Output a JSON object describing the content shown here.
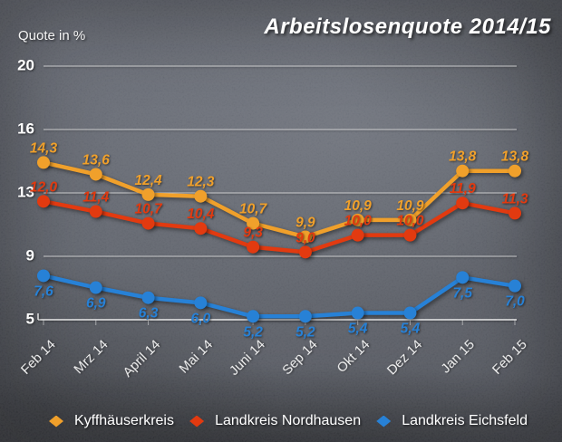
{
  "title": "Arbeitslosenquote 2014/15",
  "chart_data": {
    "type": "line",
    "title": "Arbeitslosenquote 2014/15",
    "ylabel": "Quote in %",
    "xlabel": "",
    "grid": true,
    "legend_position": "bottom",
    "ylim": [
      5,
      20
    ],
    "y_ticks": [
      20,
      16,
      13,
      9,
      5
    ],
    "categories": [
      "Feb 14",
      "Mrz 14",
      "April 14",
      "Mai 14",
      "Juni 14",
      "Sep 14",
      "Okt 14",
      "Dez 14",
      "Jan 15",
      "Feb 15"
    ],
    "decimal_separator": ",",
    "series": [
      {
        "name": "Kyffhäuserkreis",
        "color": "#F0A02B",
        "label_side": "above",
        "values": [
          14.3,
          13.6,
          12.4,
          12.3,
          10.7,
          9.9,
          10.9,
          10.9,
          13.8,
          13.8
        ]
      },
      {
        "name": "Landkreis Nordhausen",
        "color": "#E23A10",
        "label_side": "above",
        "values": [
          12.0,
          11.4,
          10.7,
          10.4,
          9.3,
          9.0,
          10.0,
          10.0,
          11.9,
          11.3
        ]
      },
      {
        "name": "Landkreis Eichsfeld",
        "color": "#2781D6",
        "label_side": "below",
        "values": [
          7.6,
          6.9,
          6.3,
          6.0,
          5.2,
          5.2,
          5.4,
          5.4,
          7.5,
          7.0
        ]
      }
    ]
  }
}
